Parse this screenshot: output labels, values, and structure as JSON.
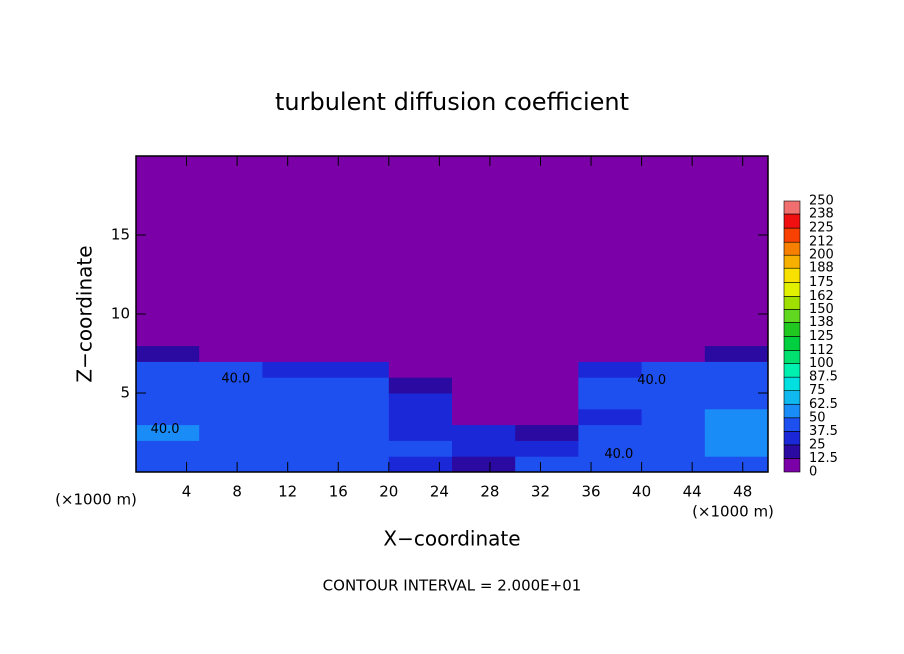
{
  "chart_data": {
    "type": "contour",
    "title": "turbulent diffusion coefficient",
    "xlabel": "X−coordinate",
    "ylabel": "Z−coordinate",
    "xunit": "(×1000 m)",
    "yunit": "(×1000 m)",
    "note": "CONTOUR INTERVAL = 2.000E+01",
    "xlim": [
      0,
      50
    ],
    "ylim": [
      0,
      20
    ],
    "xticks": [
      4,
      8,
      12,
      16,
      20,
      24,
      28,
      32,
      36,
      40,
      44,
      48
    ],
    "yticks": [
      5,
      10,
      15
    ],
    "x_edges": [
      0,
      5,
      10,
      15,
      20,
      25,
      30,
      35,
      40,
      45,
      50
    ],
    "y_edges": [
      0,
      1,
      2,
      3,
      4,
      5,
      6,
      7,
      8,
      20
    ],
    "values": [
      [
        45,
        40,
        40,
        40,
        30,
        20,
        40,
        45,
        45,
        45
      ],
      [
        45,
        45,
        40,
        40,
        40,
        30,
        30,
        45,
        45,
        50
      ],
      [
        50,
        40,
        45,
        40,
        35,
        25,
        20,
        40,
        45,
        50
      ],
      [
        45,
        40,
        45,
        45,
        30,
        10,
        10,
        35,
        45,
        50
      ],
      [
        45,
        45,
        45,
        45,
        30,
        10,
        5,
        40,
        45,
        45
      ],
      [
        45,
        40,
        40,
        45,
        20,
        5,
        5,
        40,
        40,
        45
      ],
      [
        40,
        40,
        35,
        35,
        10,
        0,
        0,
        30,
        40,
        40
      ],
      [
        20,
        5,
        0,
        0,
        0,
        0,
        0,
        0,
        5,
        20
      ],
      [
        0,
        0,
        0,
        0,
        0,
        0,
        0,
        0,
        0,
        0
      ]
    ],
    "levels": [
      0,
      12.5,
      25,
      37.5,
      50,
      62.5,
      75,
      87.5,
      100,
      112,
      125,
      138,
      150,
      162,
      175,
      188,
      200,
      212,
      225,
      238,
      250
    ],
    "level_colors": [
      "#7b00a7",
      "#2a0aa0",
      "#1a28d8",
      "#1e50f0",
      "#1a8cf8",
      "#10b8f0",
      "#00e0e0",
      "#00f0b0",
      "#00e070",
      "#00d040",
      "#20c820",
      "#60d820",
      "#a0e000",
      "#e0f000",
      "#f8e000",
      "#f8b000",
      "#f88000",
      "#f84000",
      "#f01010",
      "#f07070"
    ],
    "annotations": [
      {
        "text": "40.0",
        "x": 7.9,
        "y": 5.9
      },
      {
        "text": "40.0",
        "x": 40.8,
        "y": 5.8
      },
      {
        "text": "40.0",
        "x": 38.2,
        "y": 1.1
      },
      {
        "text": "40.0",
        "x": 2.3,
        "y": 2.7
      }
    ]
  }
}
